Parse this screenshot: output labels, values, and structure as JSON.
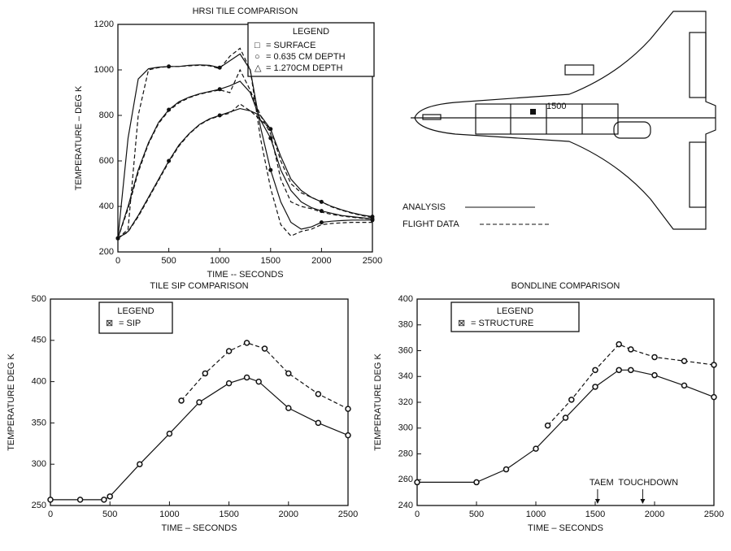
{
  "chart_data": [
    {
      "type": "line",
      "title": "HRSI TILE COMPARISON",
      "xlabel": "TIME -- SECONDS",
      "ylabel": "TEMPERATURE – DEG K",
      "xlim": [
        0,
        2500
      ],
      "xticks": [
        0,
        500,
        1000,
        1500,
        2000,
        2500
      ],
      "ylim": [
        200,
        1200
      ],
      "yticks": [
        200,
        400,
        600,
        800,
        1000,
        1200
      ],
      "legend_title": "LEGEND",
      "x": [
        0,
        100,
        200,
        300,
        400,
        500,
        600,
        700,
        800,
        900,
        1000,
        1100,
        1200,
        1300,
        1400,
        1500,
        1600,
        1700,
        1800,
        1900,
        2000,
        2100,
        2200,
        2300,
        2400,
        2500
      ],
      "series": [
        {
          "name": "= SURFACE",
          "marker": "□",
          "analysis": [
            260,
            700,
            960,
            1005,
            1012,
            1015,
            1015,
            1020,
            1022,
            1020,
            1010,
            1040,
            1070,
            1000,
            750,
            560,
            420,
            330,
            300,
            310,
            330,
            335,
            338,
            340,
            340,
            340
          ],
          "flight": [
            260,
            300,
            800,
            1000,
            1010,
            1015,
            1015,
            1018,
            1020,
            1018,
            1005,
            1060,
            1095,
            1000,
            700,
            480,
            320,
            270,
            290,
            300,
            320,
            325,
            328,
            330,
            330,
            330
          ]
        },
        {
          "name": "= 0.635 CM DEPTH",
          "marker": "○",
          "analysis": [
            260,
            400,
            560,
            680,
            770,
            825,
            860,
            880,
            895,
            905,
            915,
            930,
            950,
            900,
            780,
            700,
            560,
            470,
            420,
            395,
            380,
            370,
            360,
            355,
            350,
            345
          ],
          "flight": [
            260,
            390,
            550,
            675,
            765,
            820,
            855,
            878,
            893,
            903,
            912,
            900,
            1000,
            910,
            800,
            720,
            520,
            420,
            400,
            390,
            375,
            365,
            358,
            352,
            348,
            345
          ]
        },
        {
          "name": "= 1.270CM DEPTH",
          "marker": "△",
          "analysis": [
            260,
            290,
            360,
            440,
            520,
            600,
            670,
            720,
            760,
            785,
            800,
            815,
            830,
            820,
            800,
            740,
            620,
            520,
            470,
            440,
            420,
            400,
            385,
            372,
            362,
            355
          ],
          "flight": [
            260,
            288,
            355,
            435,
            515,
            595,
            665,
            718,
            758,
            783,
            798,
            810,
            850,
            820,
            780,
            740,
            600,
            500,
            460,
            440,
            420,
            398,
            383,
            370,
            360,
            350
          ]
        }
      ]
    },
    {
      "type": "line",
      "title": "TILE SIP COMPARISON",
      "xlabel": "TIME – SECONDS",
      "ylabel": "TEMPERATURE DEG K",
      "xlim": [
        0,
        2500
      ],
      "xticks": [
        0,
        500,
        1000,
        1500,
        2000,
        2500
      ],
      "ylim": [
        250,
        500
      ],
      "yticks": [
        250,
        300,
        350,
        400,
        450,
        500
      ],
      "legend": {
        "title": "LEGEND",
        "marker": "⊠",
        "label": "= SIP"
      },
      "series": [
        {
          "dash": false,
          "x": [
            0,
            250,
            450,
            500,
            750,
            1000,
            1250,
            1500,
            1650,
            1750,
            2000,
            2250,
            2500
          ],
          "values": [
            257,
            257,
            257,
            261,
            300,
            337,
            375,
            398,
            405,
            400,
            368,
            350,
            335
          ]
        },
        {
          "dash": true,
          "x": [
            1100,
            1300,
            1500,
            1650,
            1800,
            2000,
            2250,
            2500
          ],
          "values": [
            377,
            410,
            437,
            447,
            440,
            410,
            385,
            367
          ]
        }
      ]
    },
    {
      "type": "line",
      "title": "BONDLINE COMPARISON",
      "xlabel": "TIME – SECONDS",
      "ylabel": "TEMPERATURE DEG K",
      "xlim": [
        0,
        2500
      ],
      "xticks": [
        0,
        500,
        1000,
        1500,
        2000,
        2500
      ],
      "ylim": [
        240,
        400
      ],
      "yticks": [
        240,
        260,
        280,
        300,
        320,
        340,
        360,
        380,
        400
      ],
      "legend": {
        "title": "LEGEND",
        "marker": "⊠",
        "label": "= STRUCTURE"
      },
      "annotations": [
        {
          "text": "TAEM",
          "x": 1520
        },
        {
          "text": "TOUCHDOWN",
          "x": 1900
        }
      ],
      "series": [
        {
          "dash": false,
          "x": [
            0,
            500,
            750,
            1000,
            1250,
            1500,
            1700,
            1800,
            2000,
            2250,
            2500
          ],
          "values": [
            258,
            258,
            268,
            284,
            308,
            332,
            345,
            345,
            341,
            333,
            324
          ]
        },
        {
          "dash": true,
          "x": [
            1100,
            1300,
            1500,
            1700,
            1800,
            2000,
            2250,
            2500
          ],
          "values": [
            302,
            322,
            345,
            365,
            361,
            355,
            352,
            349
          ]
        }
      ]
    }
  ],
  "diagram": {
    "location": "1500",
    "analysis_label": "ANALYSIS",
    "flight_label": "FLIGHT DATA"
  }
}
